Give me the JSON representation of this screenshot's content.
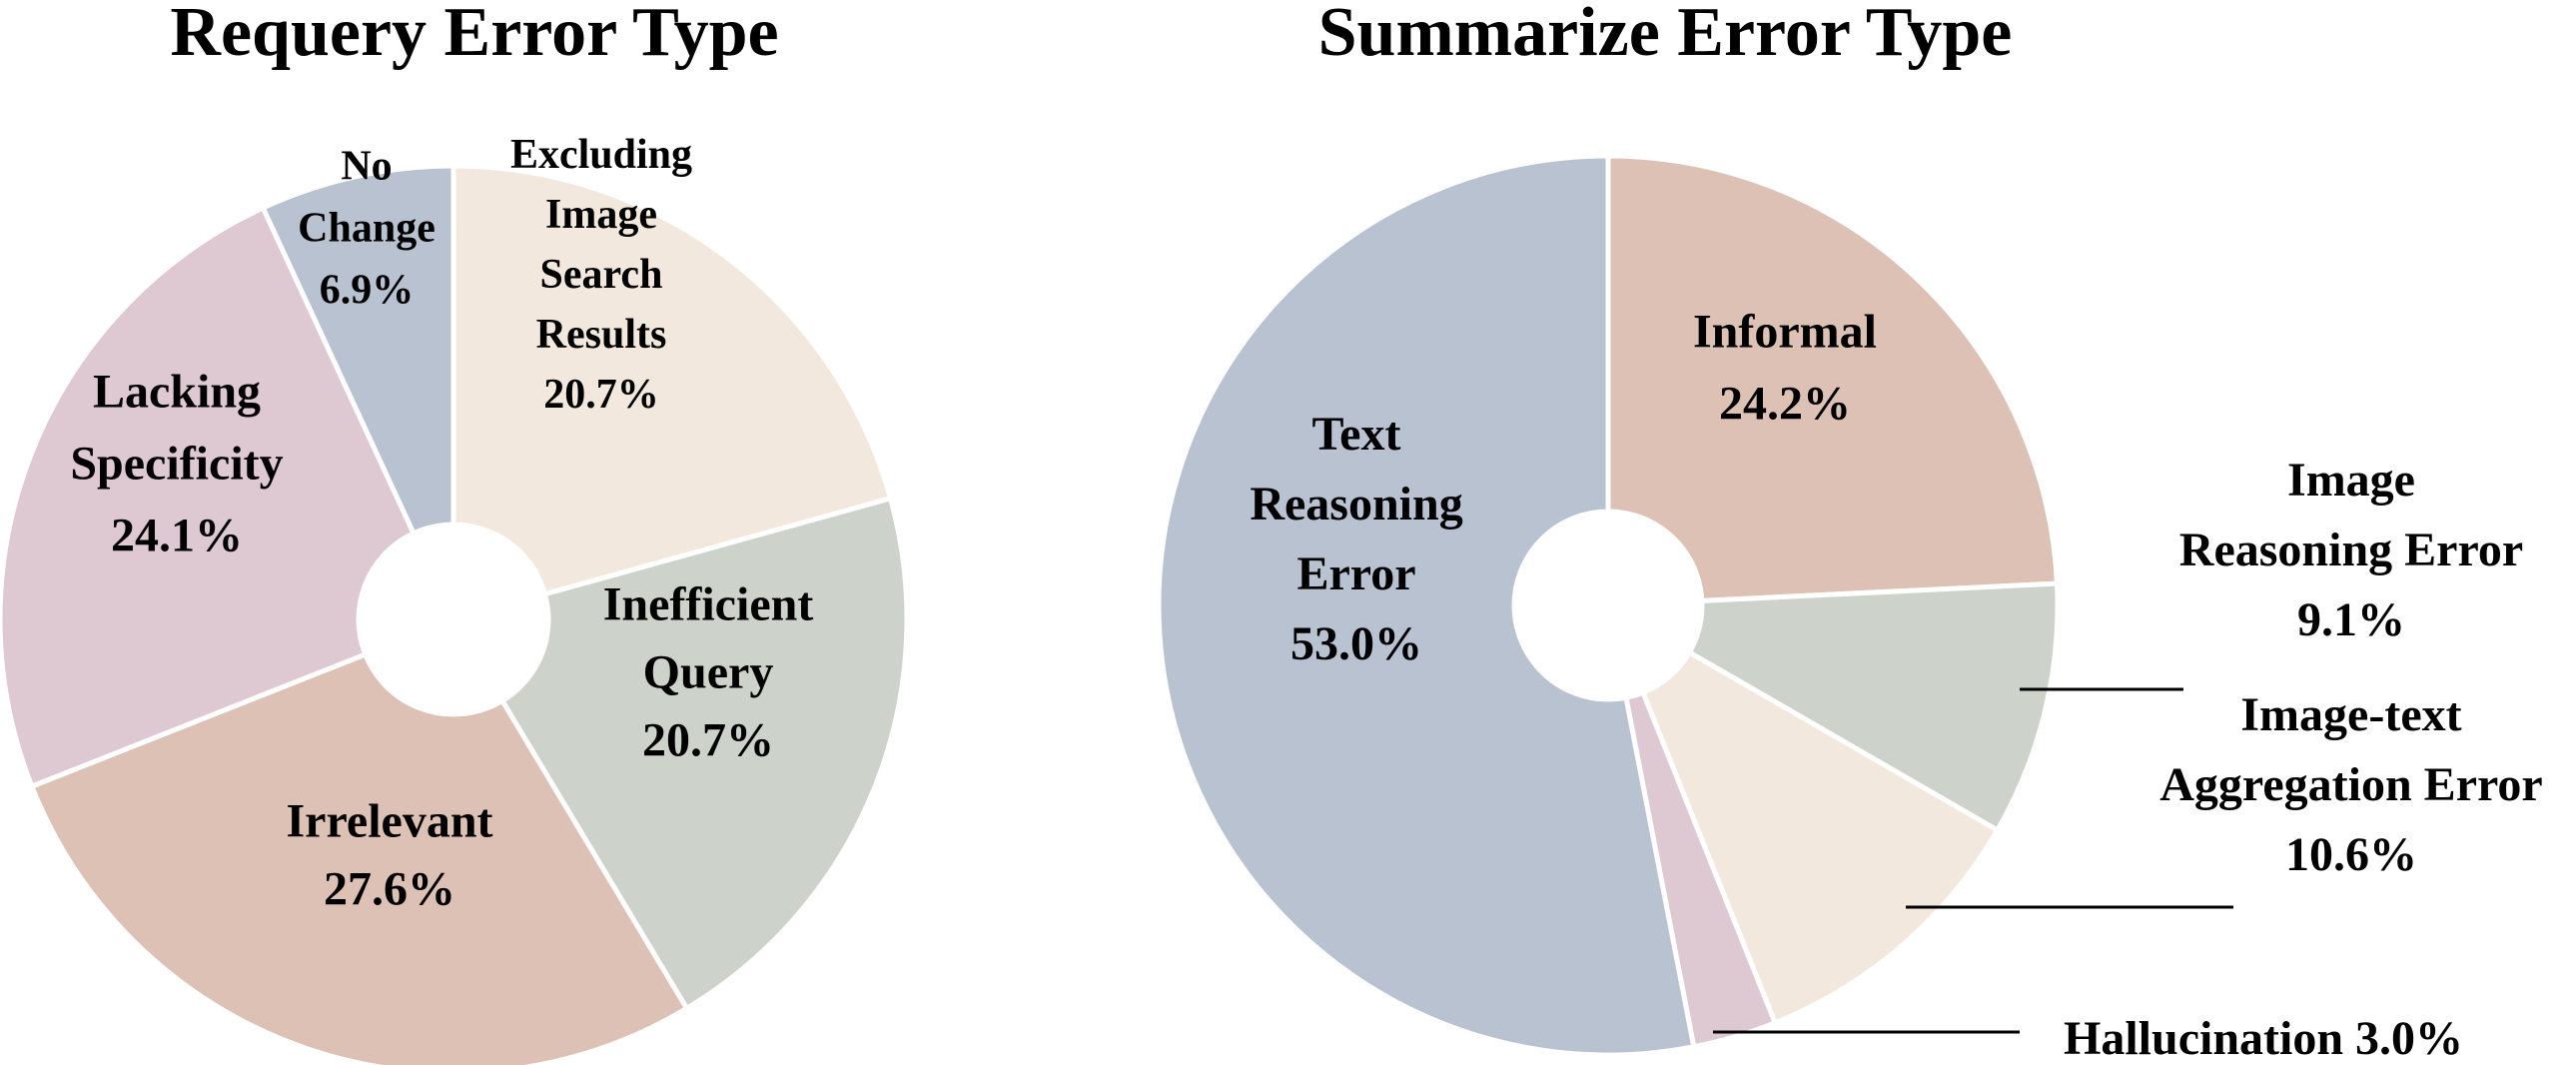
{
  "chart_data": [
    {
      "type": "pie",
      "title": "Requery Error Type",
      "donut": true,
      "start": "12 o'clock",
      "direction": "clockwise",
      "slices": [
        {
          "label": [
            "Excluding",
            "Image",
            "Search",
            "Results"
          ],
          "pct": "20.7%",
          "value": 20.7,
          "color": "#f2e8dd"
        },
        {
          "label": [
            "Inefficient",
            "Query"
          ],
          "pct": "20.7%",
          "value": 20.7,
          "color": "#cdd3cb"
        },
        {
          "label": [
            "Irrelevant"
          ],
          "pct": "27.6%",
          "value": 27.6,
          "color": "#dcc1b4"
        },
        {
          "label": [
            "Lacking",
            "Specificity"
          ],
          "pct": "24.1%",
          "value": 24.1,
          "color": "#dec8d1"
        },
        {
          "label": [
            "No",
            "Change"
          ],
          "pct": "6.9%",
          "value": 6.9,
          "color": "#b8c2d1"
        }
      ]
    },
    {
      "type": "pie",
      "title": "Summarize Error Type",
      "donut": true,
      "start": "12 o'clock",
      "direction": "clockwise",
      "slices": [
        {
          "label": [
            "Informal"
          ],
          "pct": "24.2%",
          "value": 24.2,
          "color": "#dcc1b4"
        },
        {
          "label": [
            "Image",
            "Reasoning Error"
          ],
          "pct": "9.1%",
          "value": 9.1,
          "color": "#cdd3cb"
        },
        {
          "label": [
            "Image-text",
            "Aggregation Error"
          ],
          "pct": "10.6%",
          "value": 10.6,
          "color": "#f2e8dd"
        },
        {
          "label": [
            "Hallucination 3.0%"
          ],
          "pct": "",
          "value": 3.0,
          "color": "#dec8d1"
        },
        {
          "label": [
            "Text",
            "Reasoning",
            "Error"
          ],
          "pct": "53.0%",
          "value": 53.0,
          "color": "#b8c2d1"
        }
      ]
    }
  ]
}
